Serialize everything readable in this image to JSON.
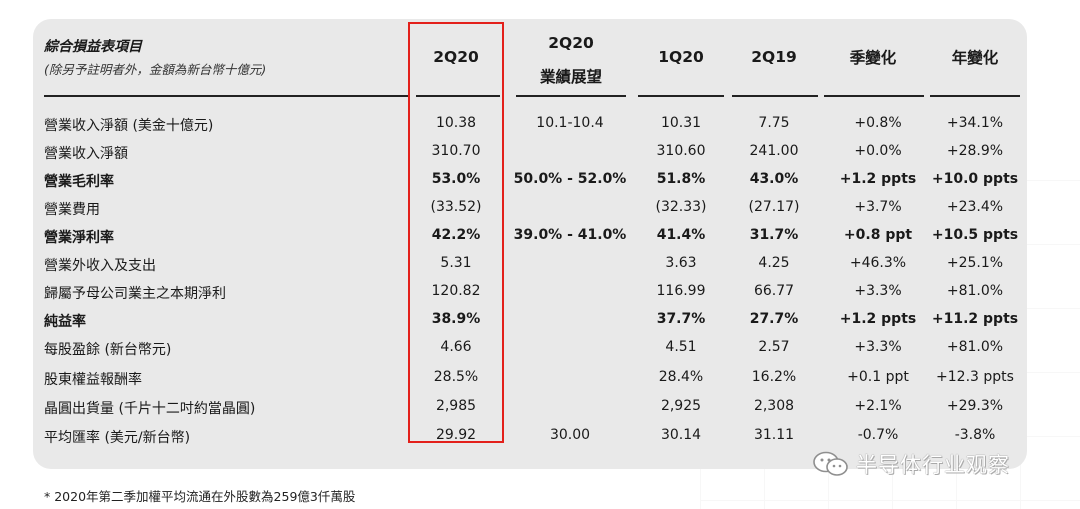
{
  "header": {
    "title": "綜合損益表項目",
    "subtitle": "(除另予註明者外，金額為新台幣十億元)",
    "columns": [
      {
        "line1": "2Q20",
        "line2": ""
      },
      {
        "line1": "2Q20",
        "line2": "業績展望"
      },
      {
        "line1": "1Q20",
        "line2": ""
      },
      {
        "line1": "2Q19",
        "line2": ""
      },
      {
        "line1": "季變化",
        "line2": ""
      },
      {
        "line1": "年變化",
        "line2": ""
      }
    ]
  },
  "rows": [
    {
      "label": "營業收入淨額 (美金十億元)",
      "bold": false,
      "values": [
        "10.38",
        "10.1-10.4",
        "10.31",
        "7.75",
        "+0.8%",
        "+34.1%"
      ]
    },
    {
      "label": "營業收入淨額",
      "bold": false,
      "values": [
        "310.70",
        "",
        "310.60",
        "241.00",
        "+0.0%",
        "+28.9%"
      ]
    },
    {
      "label": "營業毛利率",
      "bold": true,
      "values": [
        "53.0%",
        "50.0% - 52.0%",
        "51.8%",
        "43.0%",
        "+1.2 ppts",
        "+10.0 ppts"
      ]
    },
    {
      "label": "營業費用",
      "bold": false,
      "values": [
        "(33.52)",
        "",
        "(32.33)",
        "(27.17)",
        "+3.7%",
        "+23.4%"
      ]
    },
    {
      "label": "營業淨利率",
      "bold": true,
      "values": [
        "42.2%",
        "39.0% - 41.0%",
        "41.4%",
        "31.7%",
        "+0.8 ppt",
        "+10.5 ppts"
      ]
    },
    {
      "label": "營業外收入及支出",
      "bold": false,
      "values": [
        "5.31",
        "",
        "3.63",
        "4.25",
        "+46.3%",
        "+25.1%"
      ]
    },
    {
      "label": "歸屬予母公司業主之本期淨利",
      "bold": false,
      "values": [
        "120.82",
        "",
        "116.99",
        "66.77",
        "+3.3%",
        "+81.0%"
      ]
    },
    {
      "label": "純益率",
      "bold": true,
      "values": [
        "38.9%",
        "",
        "37.7%",
        "27.7%",
        "+1.2 ppts",
        "+11.2 ppts"
      ]
    },
    {
      "label": "每股盈餘 (新台幣元)",
      "bold": false,
      "values": [
        "4.66",
        "",
        "4.51",
        "2.57",
        "+3.3%",
        "+81.0%"
      ]
    },
    {
      "label": "股東權益報酬率",
      "bold": false,
      "values": [
        "28.5%",
        "",
        "28.4%",
        "16.2%",
        "+0.1 ppt",
        "+12.3 ppts"
      ]
    },
    {
      "label": "晶圓出貨量 (千片十二吋約當晶圓)",
      "bold": false,
      "values": [
        "2,985",
        "",
        "2,925",
        "2,308",
        "+2.1%",
        "+29.3%"
      ]
    },
    {
      "label": "平均匯率 (美元/新台幣)",
      "bold": false,
      "values": [
        "29.92",
        "30.00",
        "30.14",
        "31.11",
        "-0.7%",
        "-3.8%"
      ]
    }
  ],
  "footnote": "*   2020年第二季加權平均流通在外股數為259億3仟萬股",
  "watermark": "半导体行业观察",
  "colors": {
    "panel": "#e9e9e9",
    "highlight": "#e3201b"
  }
}
